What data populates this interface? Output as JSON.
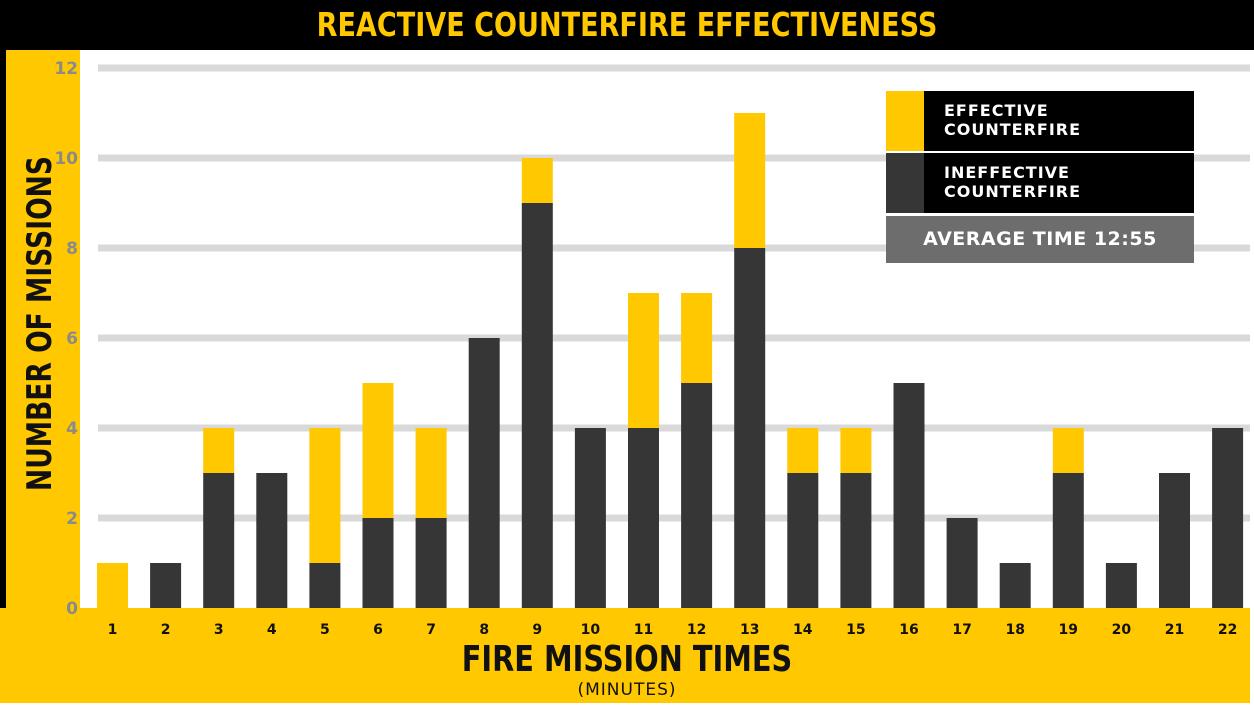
{
  "chart_data": {
    "type": "bar",
    "stacked": true,
    "title": "REACTIVE COUNTERFIRE EFFECTIVENESS",
    "xlabel": "FIRE MISSION TIMES",
    "xlabel_sub": "(MINUTES)",
    "ylabel": "NUMBER OF MISSIONS",
    "ylim": [
      0,
      12
    ],
    "yticks": [
      0,
      2,
      4,
      6,
      8,
      10,
      12
    ],
    "grid": true,
    "legend_position": "top-right",
    "categories": [
      "1",
      "2",
      "3",
      "4",
      "5",
      "6",
      "7",
      "8",
      "9",
      "10",
      "11",
      "12",
      "13",
      "14",
      "15",
      "16",
      "17",
      "18",
      "19",
      "20",
      "21",
      "22"
    ],
    "series": [
      {
        "name": "INEFFECTIVE COUNTERFIRE",
        "color": "#363636",
        "values": [
          0,
          1,
          3,
          3,
          1,
          2,
          2,
          6,
          9,
          4,
          4,
          5,
          8,
          3,
          3,
          5,
          2,
          1,
          3,
          1,
          3,
          4
        ]
      },
      {
        "name": "EFFECTIVE COUNTERFIRE",
        "color": "#ffc800",
        "values": [
          1,
          0,
          1,
          0,
          3,
          3,
          2,
          0,
          1,
          0,
          3,
          2,
          3,
          1,
          1,
          0,
          0,
          0,
          1,
          0,
          0,
          0
        ]
      }
    ],
    "legend": [
      {
        "label": "EFFECTIVE\nCOUNTERFIRE",
        "color": "#ffc800"
      },
      {
        "label": "INEFFECTIVE\nCOUNTERFIRE",
        "color": "#363636"
      }
    ],
    "annotation": "AVERAGE TIME 12:55"
  },
  "colors": {
    "accent": "#ffc800",
    "dark_bar": "#363636",
    "grid": "#d9d9d9",
    "banner": "#000000"
  }
}
